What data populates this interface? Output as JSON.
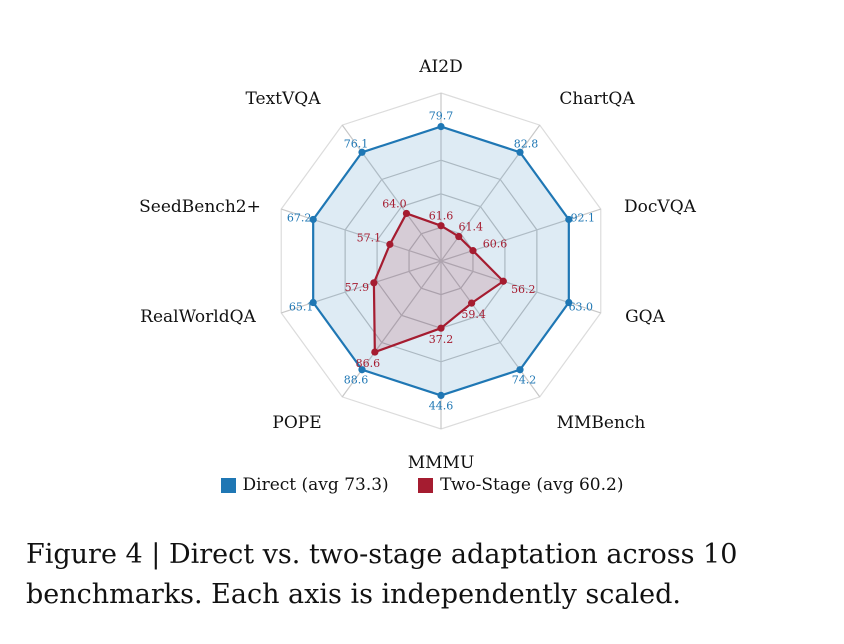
{
  "chart_data": {
    "type": "radar",
    "title": "",
    "axes": [
      "AI2D",
      "ChartQA",
      "DocVQA",
      "GQA",
      "MMBench",
      "MMMU",
      "POPE",
      "RealWorldQA",
      "SeedBench2+",
      "TextVQA"
    ],
    "axis_scaling": "independent",
    "grid": true,
    "grid_levels": [
      0.2,
      0.4,
      0.6,
      0.8,
      1.0
    ],
    "series": [
      {
        "name": "Direct",
        "legend_label": "Direct (avg 73.3)",
        "color": "#1f77b4",
        "values": [
          79.7,
          82.8,
          92.1,
          63.0,
          74.2,
          44.6,
          88.6,
          65.1,
          67.2,
          76.1
        ],
        "normalized": [
          0.8,
          0.8,
          0.8,
          0.8,
          0.8,
          0.8,
          0.8,
          0.8,
          0.8,
          0.8
        ]
      },
      {
        "name": "Two-Stage",
        "legend_label": "Two-Stage (avg 60.2)",
        "color": "#a51c30",
        "values": [
          61.6,
          61.4,
          60.6,
          56.2,
          59.4,
          37.2,
          86.6,
          57.9,
          57.1,
          64.0
        ],
        "normalized": [
          0.21,
          0.18,
          0.2,
          0.39,
          0.31,
          0.4,
          0.67,
          0.42,
          0.32,
          0.35
        ]
      }
    ],
    "legend_placement": "bottom"
  },
  "caption": {
    "line1": "Figure 4 | Direct vs. two-stage adaptation across 10",
    "line2": "benchmarks. Each axis is independently scaled."
  }
}
